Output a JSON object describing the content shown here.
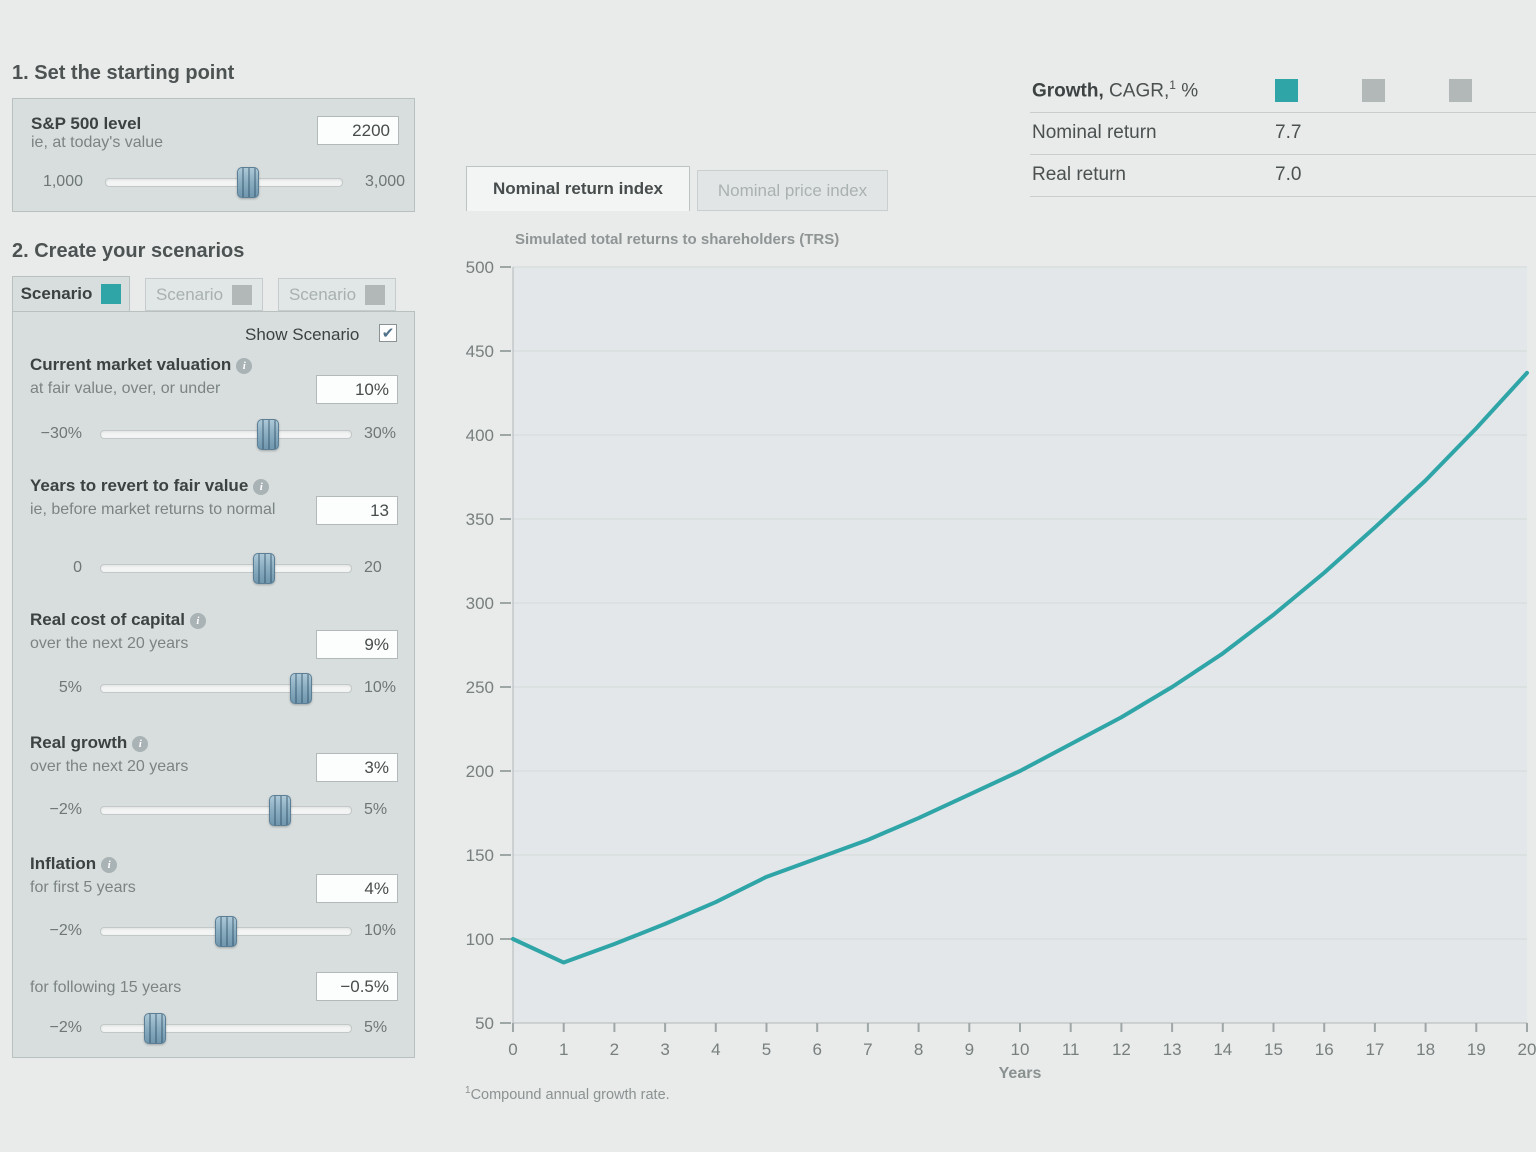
{
  "colors": {
    "accent_teal": "#2fa5a8",
    "legend_gray": "#b2b8b8"
  },
  "section1": {
    "title": "1. Set the starting point",
    "sp500": {
      "label": "S&P 500 level",
      "sublabel": "ie, at today's value",
      "value": "2200",
      "min_label": "1,000",
      "max_label": "3,000",
      "percent": 60
    }
  },
  "section2": {
    "title": "2. Create your scenarios",
    "tabs": [
      {
        "label": "Scenario",
        "color": "#2fa5a8",
        "active": true
      },
      {
        "label": "Scenario",
        "color": "#b2b8b8",
        "active": false
      },
      {
        "label": "Scenario",
        "color": "#b2b8b8",
        "active": false
      }
    ],
    "show_scenario_label": "Show Scenario",
    "show_scenario_checked": true,
    "params": [
      {
        "label": "Current market valuation",
        "sublabel": "at fair value, over, or under",
        "value": "10%",
        "min_label": "−30%",
        "max_label": "30%",
        "percent": 66.7
      },
      {
        "label": "Years to revert to fair value",
        "sublabel": "ie, before market returns to normal",
        "value": "13",
        "min_label": "0",
        "max_label": "20",
        "percent": 65
      },
      {
        "label": "Real cost of capital",
        "sublabel": "over the next 20 years",
        "value": "9%",
        "min_label": "5%",
        "max_label": "10%",
        "percent": 80
      },
      {
        "label": "Real growth",
        "sublabel": "over the next 20 years",
        "value": "3%",
        "min_label": "−2%",
        "max_label": "5%",
        "percent": 71.4
      },
      {
        "label": "Inflation",
        "sublabel": "for first 5 years",
        "value": "4%",
        "min_label": "−2%",
        "max_label": "10%",
        "percent": 50
      },
      {
        "label": "",
        "sublabel": "for following 15 years",
        "value": "−0.5%",
        "min_label": "−2%",
        "max_label": "5%",
        "percent": 21.4
      }
    ]
  },
  "summary": {
    "header_bold": "Growth,",
    "header_rest": " CAGR,",
    "header_sup": "1",
    "header_unit": " %",
    "legend_colors": [
      "#2fa5a8",
      "#b2b8b8",
      "#b2b8b8"
    ],
    "rows": [
      {
        "label": "Nominal return",
        "values": [
          "7.7",
          "",
          ""
        ]
      },
      {
        "label": "Real return",
        "values": [
          "7.0",
          "",
          ""
        ]
      }
    ]
  },
  "chart_tabs": [
    {
      "label": "Nominal return index",
      "active": true
    },
    {
      "label": "Nominal price index",
      "active": false
    }
  ],
  "chart_data": {
    "type": "line",
    "title": "Simulated total returns to shareholders (TRS)",
    "xlabel": "Years",
    "x": [
      0,
      1,
      2,
      3,
      4,
      5,
      6,
      7,
      8,
      9,
      10,
      11,
      12,
      13,
      14,
      15,
      16,
      17,
      18,
      19,
      20
    ],
    "series": [
      {
        "name": "Scenario 1",
        "color": "#2fa5a8",
        "values": [
          100,
          86,
          97,
          109,
          122,
          137,
          148,
          159,
          172,
          186,
          200,
          216,
          232,
          250,
          270,
          293,
          318,
          345,
          373,
          404,
          437
        ]
      }
    ],
    "ylim": [
      50,
      500
    ],
    "yticks": [
      50,
      100,
      150,
      200,
      250,
      300,
      350,
      400,
      450,
      500
    ],
    "grid": true,
    "legend_position": "none"
  },
  "footnote": {
    "sup": "1",
    "text": "Compound annual growth rate."
  }
}
